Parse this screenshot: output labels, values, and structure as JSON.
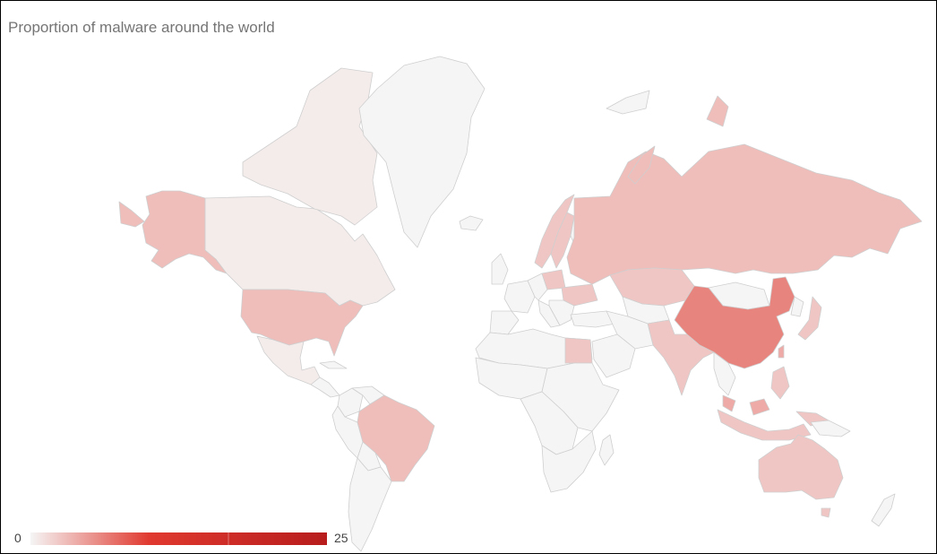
{
  "chart": {
    "title": "Proportion of malware around the world"
  },
  "legend": {
    "min_label": "0",
    "max_label": "25",
    "min_value": 0,
    "max_value": 25,
    "color_low": "#f5f5f5",
    "color_mid": "#e0392f",
    "color_high": "#b71c1c"
  },
  "colors": {
    "no_data": "#f5f5f5",
    "border": "#cfcfcf"
  },
  "chart_data": {
    "type": "geo",
    "title": "Proportion of malware around the world",
    "colorAxis": {
      "min": 0,
      "max": 25
    },
    "regions": [
      {
        "name": "United States",
        "value": 3
      },
      {
        "name": "Canada",
        "value": 0.5
      },
      {
        "name": "Alaska (USA)",
        "value": 3
      },
      {
        "name": "Mexico",
        "value": 0.5
      },
      {
        "name": "Brazil",
        "value": 3
      },
      {
        "name": "China",
        "value": 6
      },
      {
        "name": "Russia",
        "value": 3
      },
      {
        "name": "India",
        "value": 2.5
      },
      {
        "name": "Australia",
        "value": 2.5
      },
      {
        "name": "Kazakhstan",
        "value": 2.5
      },
      {
        "name": "Indonesia",
        "value": 2.5
      },
      {
        "name": "Malaysia",
        "value": 4
      },
      {
        "name": "Egypt",
        "value": 2.5
      },
      {
        "name": "Norway",
        "value": 2.5
      },
      {
        "name": "Sweden",
        "value": 2.5
      },
      {
        "name": "Poland",
        "value": 2.5
      },
      {
        "name": "Ukraine",
        "value": 2.5
      },
      {
        "name": "Japan",
        "value": 2.5
      },
      {
        "name": "Taiwan",
        "value": 4
      },
      {
        "name": "Philippines",
        "value": 2.5
      }
    ]
  }
}
